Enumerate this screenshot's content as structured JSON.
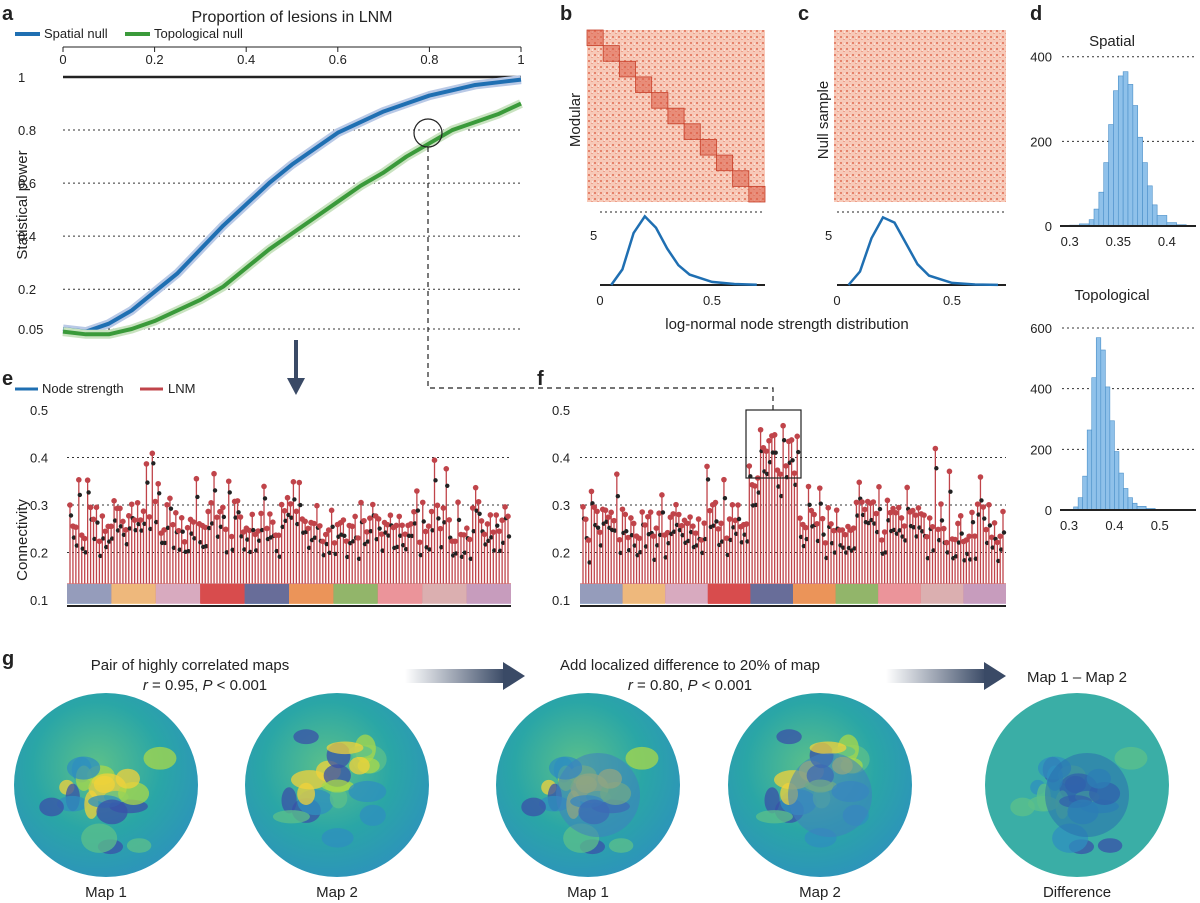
{
  "panels": {
    "a": "a",
    "b": "b",
    "c": "c",
    "d": "d",
    "e": "e",
    "f": "f",
    "g": "g"
  },
  "panel_a": {
    "top_axis_label": "Proportion of lesions in LNM",
    "ylabel": "Statistical power",
    "legend": [
      "Spatial null",
      "Topological null"
    ],
    "top_ticks": [
      "0",
      "0.2",
      "0.4",
      "0.6",
      "0.8",
      "1"
    ],
    "y_ticks": [
      "1",
      "0.8",
      "0.6",
      "0.4",
      "0.2",
      "0.05"
    ]
  },
  "panel_b": {
    "ylabel": "Modular",
    "x_ticks": [
      "0",
      "0.5"
    ],
    "y_tick": "5"
  },
  "panel_c": {
    "ylabel": "Null sample",
    "x_ticks": [
      "0",
      "0.5"
    ],
    "y_tick": "5"
  },
  "bc_xlabel": "log-normal node strength distribution",
  "panel_d": {
    "spatial_title": "Spatial",
    "spatial_y_ticks": [
      "400",
      "200",
      "0"
    ],
    "spatial_x_ticks": [
      "0.3",
      "0.35",
      "0.4"
    ],
    "topo_title": "Topological",
    "topo_y_ticks": [
      "600",
      "400",
      "200",
      "0"
    ],
    "topo_x_ticks": [
      "0.3",
      "0.4",
      "0.5"
    ]
  },
  "panel_e": {
    "legend": [
      "Node strength",
      "LNM"
    ],
    "ylabel": "Connectivity",
    "y_ticks": [
      "0.5",
      "0.4",
      "0.3",
      "0.2",
      "0.1"
    ]
  },
  "panel_f": {
    "y_ticks": [
      "0.5",
      "0.4",
      "0.3",
      "0.2",
      "0.1"
    ]
  },
  "panel_g": {
    "left_title_1": "Pair of highly correlated maps",
    "left_title_2_r": "r",
    "left_title_2_rest": " = 0.95, ",
    "left_title_2_p": "P",
    "left_title_2_end": " < 0.001",
    "mid_title_1": "Add localized difference to 20% of map",
    "mid_title_2_r": "r",
    "mid_title_2_rest": " = 0.80, ",
    "mid_title_2_p": "P",
    "mid_title_2_end": " < 0.001",
    "right_title": "Map 1 – Map 2",
    "map_labels": [
      "Map 1",
      "Map 2",
      "Map 1",
      "Map 2",
      "Difference"
    ]
  },
  "colors": {
    "spatial": "#1f6fb2",
    "topological": "#3a9a3a",
    "lnm": "#c0444a",
    "node_strength": "#1f6fb2",
    "hist": "#8fc1ea",
    "arrow": "#3a4a66"
  },
  "chart_data": [
    {
      "type": "line",
      "panel": "a",
      "title": "Proportion of lesions in LNM",
      "xlabel": "Proportion of lesions in LNM",
      "ylabel": "Statistical power",
      "xlim": [
        0,
        1
      ],
      "ylim": [
        0.05,
        1
      ],
      "x": [
        0,
        0.05,
        0.1,
        0.15,
        0.2,
        0.25,
        0.3,
        0.35,
        0.4,
        0.45,
        0.5,
        0.55,
        0.6,
        0.65,
        0.7,
        0.75,
        0.8,
        0.85,
        0.9,
        0.95,
        1.0
      ],
      "series": [
        {
          "name": "Spatial null",
          "values": [
            0.05,
            0.04,
            0.07,
            0.12,
            0.19,
            0.26,
            0.35,
            0.44,
            0.52,
            0.6,
            0.67,
            0.73,
            0.79,
            0.83,
            0.87,
            0.9,
            0.93,
            0.95,
            0.97,
            0.98,
            0.99
          ]
        },
        {
          "name": "Topological null",
          "values": [
            0.04,
            0.03,
            0.03,
            0.05,
            0.08,
            0.12,
            0.16,
            0.21,
            0.28,
            0.35,
            0.41,
            0.47,
            0.53,
            0.59,
            0.64,
            0.7,
            0.75,
            0.8,
            0.83,
            0.86,
            0.9
          ]
        }
      ]
    },
    {
      "type": "line",
      "panel": "b",
      "xlabel": "log-normal node strength distribution",
      "xlim": [
        0,
        0.75
      ],
      "x": [
        0.05,
        0.1,
        0.15,
        0.2,
        0.25,
        0.3,
        0.35,
        0.4,
        0.5,
        0.6,
        0.7
      ],
      "series": [
        {
          "values": [
            0,
            1.5,
            5,
            6.6,
            5.5,
            3.5,
            1.9,
            1.0,
            0.3,
            0.1,
            0.03
          ]
        }
      ]
    },
    {
      "type": "line",
      "panel": "c",
      "xlabel": "log-normal node strength distribution",
      "xlim": [
        0,
        0.75
      ],
      "x": [
        0.05,
        0.1,
        0.15,
        0.2,
        0.25,
        0.3,
        0.35,
        0.4,
        0.5,
        0.6,
        0.7
      ],
      "series": [
        {
          "values": [
            0,
            1.3,
            4.5,
            6.5,
            6.0,
            4.0,
            2.0,
            0.9,
            0.2,
            0.05,
            0.01
          ]
        }
      ]
    },
    {
      "type": "bar",
      "panel": "d",
      "title": "Spatial",
      "xlim": [
        0.29,
        0.43
      ],
      "ylim": [
        0,
        440
      ],
      "x": [
        0.3,
        0.31,
        0.32,
        0.325,
        0.33,
        0.335,
        0.34,
        0.345,
        0.35,
        0.355,
        0.36,
        0.365,
        0.37,
        0.375,
        0.38,
        0.385,
        0.39,
        0.4,
        0.41
      ],
      "values": [
        2,
        5,
        15,
        40,
        80,
        150,
        240,
        320,
        355,
        365,
        335,
        285,
        210,
        150,
        95,
        50,
        25,
        8,
        3
      ]
    },
    {
      "type": "bar",
      "panel": "d",
      "title": "Topological",
      "xlim": [
        0.28,
        0.58
      ],
      "ylim": [
        0,
        650
      ],
      "x": [
        0.31,
        0.32,
        0.33,
        0.34,
        0.35,
        0.36,
        0.37,
        0.38,
        0.39,
        0.4,
        0.41,
        0.42,
        0.43,
        0.44,
        0.45,
        0.47,
        0.49
      ],
      "values": [
        10,
        40,
        110,
        260,
        430,
        560,
        520,
        400,
        290,
        190,
        120,
        70,
        40,
        22,
        12,
        5,
        2
      ]
    }
  ]
}
